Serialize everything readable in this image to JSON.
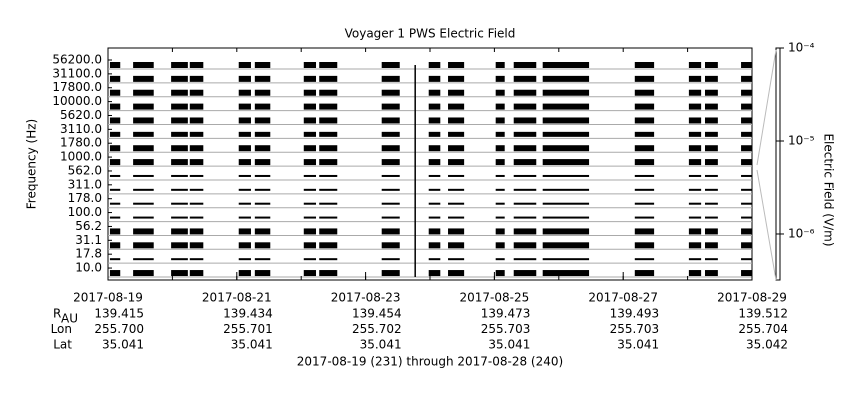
{
  "chart_data": {
    "type": "spectrogram",
    "title": "Voyager 1 PWS Electric Field",
    "ylabel": "Frequency (Hz)",
    "y2label": "Electric Field (V/m)",
    "channels": [
      "56200.0",
      "31100.0",
      "17800.0",
      "10000.0",
      "5620.0",
      "3110.0",
      "1780.0",
      "1000.0",
      "562.0",
      "311.0",
      "178.0",
      "100.0",
      "56.2",
      "31.1",
      "17.8",
      "10.0"
    ],
    "xlim": [
      231,
      241
    ],
    "xticks": [
      {
        "value": 231,
        "label": "2017-08-19"
      },
      {
        "value": 233,
        "label": "2017-08-21"
      },
      {
        "value": 235,
        "label": "2017-08-23"
      },
      {
        "value": 237,
        "label": "2017-08-25"
      },
      {
        "value": 239,
        "label": "2017-08-27"
      },
      {
        "value": 241,
        "label": "2017-08-29"
      }
    ],
    "segments": [
      [
        231.03,
        231.19
      ],
      [
        231.39,
        231.71
      ],
      [
        231.98,
        232.24
      ],
      [
        232.27,
        232.48
      ],
      [
        233.03,
        233.22
      ],
      [
        233.28,
        233.52
      ],
      [
        234.04,
        234.23
      ],
      [
        234.28,
        234.56
      ],
      [
        235.25,
        235.53
      ],
      [
        235.98,
        236.16
      ],
      [
        236.28,
        236.53
      ],
      [
        237.02,
        237.16
      ],
      [
        237.3,
        237.65
      ],
      [
        237.75,
        238.47
      ],
      [
        239.18,
        239.48
      ],
      [
        240.02,
        240.21
      ],
      [
        240.27,
        240.47
      ],
      [
        240.83,
        241.0
      ]
    ],
    "events": [
      235.77
    ],
    "y2lim": [
      3.2e-07,
      0.0001
    ],
    "y2log": true,
    "y2ticks": [
      {
        "value": 0.0001,
        "label": "10⁻⁴"
      },
      {
        "value": 1e-05,
        "label": "10⁻⁵"
      },
      {
        "value": 1e-06,
        "label": "10⁻⁶"
      }
    ],
    "color": "#000000",
    "grid": true,
    "ephemeris": [
      {
        "label": "R",
        "sub": "AU",
        "values": [
          "139.415",
          "139.434",
          "139.454",
          "139.473",
          "139.493",
          "139.512"
        ]
      },
      {
        "label": "Lon",
        "values": [
          "255.700",
          "255.701",
          "255.702",
          "255.703",
          "255.703",
          "255.704"
        ]
      },
      {
        "label": "Lat",
        "values": [
          "35.041",
          "35.041",
          "35.041",
          "35.041",
          "35.041",
          "35.042"
        ]
      }
    ],
    "footer": "2017-08-19 (231) through 2017-08-28 (240)"
  }
}
